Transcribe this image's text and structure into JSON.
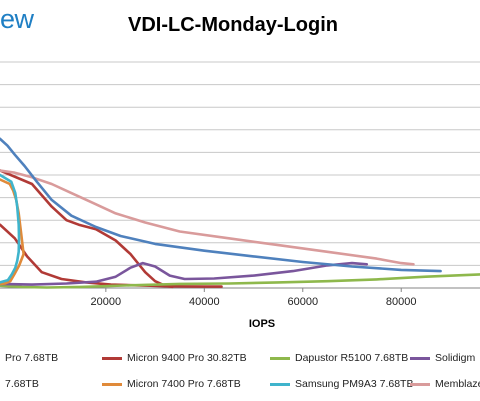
{
  "logo": {
    "text": "ew"
  },
  "chart_data": {
    "type": "line",
    "title": "VDI-LC-Monday-Login",
    "xlabel": "IOPS",
    "ylabel": "",
    "xlim": [
      -1500,
      96000
    ],
    "ylim": [
      0,
      10
    ],
    "x_ticks": [
      20000,
      40000,
      60000,
      80000
    ],
    "x_tick_labels": [
      "20000",
      "40000",
      "60000",
      "80000"
    ],
    "grid": {
      "horizontal": true,
      "vertical": false
    },
    "legend_position": "bottom",
    "legend_rows": [
      [
        "Micron 9400 Pro 30.82TB",
        "Dapustor R5100 7.68TB",
        "Solidigm"
      ],
      [
        "Micron 7400 Pro 7.68TB",
        "Samsung PM9A3 7.68TB",
        "Memblaze"
      ]
    ],
    "legend_partial": [
      {
        "text": "Pro 7.68TB",
        "color": "#4f81bd"
      },
      {
        "text": "7.68TB",
        "color": "#2ca6c4"
      }
    ],
    "series": [
      {
        "name": "Micron 9400 Pro 30.82TB",
        "color": "#b13a36",
        "x": [
          -1500,
          1500,
          4000,
          7000,
          11000,
          16000,
          21000,
          26000,
          29000,
          32000,
          36000,
          40000,
          43500
        ],
        "y": [
          2.8,
          2.2,
          1.4,
          0.7,
          0.4,
          0.25,
          0.15,
          0.12,
          0.1,
          0.08,
          0.07,
          0.06,
          0.06
        ]
      },
      {
        "name": "Micron 9400 Pro 30.82TB ",
        "color": "#b13a36",
        "x": [
          -1500,
          5000,
          9000,
          12000,
          14500,
          18000,
          22000,
          25000,
          28000,
          30000,
          31500,
          32500,
          33500
        ],
        "y": [
          5.2,
          4.6,
          3.6,
          3.0,
          2.8,
          2.6,
          2.1,
          1.5,
          0.7,
          0.3,
          0.15,
          0.08,
          0.05
        ]
      },
      {
        "name": "Dapustor R5100 7.68TB",
        "color": "#8eb84c",
        "x": [
          -1500,
          3000,
          8000,
          15000,
          25000,
          35000,
          45000,
          55000,
          65000,
          75000,
          85000,
          96000
        ],
        "y": [
          0.1,
          0.05,
          0.02,
          0.05,
          0.12,
          0.18,
          0.2,
          0.25,
          0.3,
          0.38,
          0.5,
          0.6
        ]
      },
      {
        "name": "Solidigm",
        "color": "#7a569c",
        "x": [
          -1500,
          5000,
          12000,
          18000,
          22000,
          25000,
          27500,
          30000,
          33000,
          36000,
          42000,
          50000,
          58000,
          65000,
          70000,
          73000
        ],
        "y": [
          0.18,
          0.15,
          0.2,
          0.28,
          0.5,
          0.9,
          1.1,
          0.95,
          0.55,
          0.4,
          0.42,
          0.55,
          0.75,
          1.0,
          1.1,
          1.05
        ]
      },
      {
        "name": "Micron 7400 Pro 7.68TB",
        "color": "#e08a3a",
        "x": [
          -1500,
          500,
          1200,
          1800,
          2300,
          2800,
          3300,
          2400,
          1400,
          600,
          -500,
          -1500
        ],
        "y": [
          4.8,
          4.6,
          4.3,
          3.9,
          3.3,
          2.4,
          1.5,
          1.0,
          0.6,
          0.3,
          0.2,
          0.18
        ]
      },
      {
        "name": "Samsung PM9A3 7.68TB",
        "color": "#3fb4cc",
        "x": [
          -1500,
          800,
          1600,
          2000,
          2300,
          2350,
          2300,
          2000,
          1600,
          900,
          100,
          -1500
        ],
        "y": [
          5.0,
          4.7,
          4.2,
          3.6,
          2.8,
          2.2,
          1.6,
          1.2,
          0.9,
          0.6,
          0.35,
          0.25
        ]
      },
      {
        "name": "Memblaze",
        "color": "#d99b9b",
        "x": [
          -1500,
          1500,
          5000,
          9000,
          13000,
          17000,
          22000,
          28000,
          35000,
          45000,
          55000,
          65000,
          75000,
          80000,
          82500
        ],
        "y": [
          5.2,
          5.1,
          4.9,
          4.6,
          4.2,
          3.8,
          3.3,
          2.9,
          2.5,
          2.2,
          1.9,
          1.6,
          1.3,
          1.1,
          1.05
        ]
      },
      {
        "name": "Pro 7.68TB",
        "color": "#4f81bd",
        "x": [
          -1500,
          0,
          1500,
          3500,
          6000,
          9000,
          13000,
          18000,
          23000,
          30000,
          40000,
          50000,
          60000,
          70000,
          80000,
          88000
        ],
        "y": [
          6.6,
          6.3,
          5.9,
          5.4,
          4.7,
          3.9,
          3.2,
          2.7,
          2.3,
          1.95,
          1.65,
          1.4,
          1.15,
          0.95,
          0.8,
          0.75
        ]
      }
    ]
  }
}
